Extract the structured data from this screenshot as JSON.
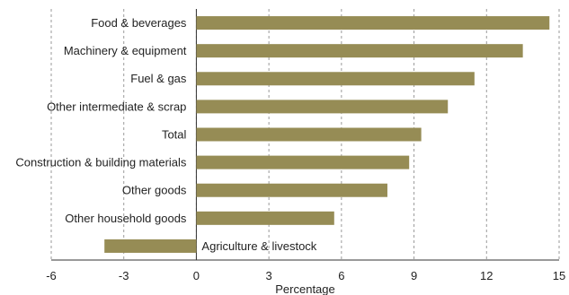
{
  "chart_data": {
    "type": "bar",
    "orientation": "horizontal",
    "categories": [
      "Food & beverages",
      "Machinery & equipment",
      "Fuel & gas",
      "Other intermediate & scrap",
      "Total",
      "Construction & building materials",
      "Other goods",
      "Other household goods",
      "Agriculture & livestock"
    ],
    "values": [
      14.6,
      13.5,
      11.5,
      10.4,
      9.3,
      8.8,
      7.9,
      5.7,
      -3.8
    ],
    "xlabel": "Percentage",
    "ylabel": "",
    "xlim": [
      -6,
      15
    ],
    "xticks": [
      -6,
      -3,
      0,
      3,
      6,
      9,
      12,
      15
    ],
    "grid": "vertical-dashed",
    "bar_color": "#968c55",
    "legend": "none"
  }
}
